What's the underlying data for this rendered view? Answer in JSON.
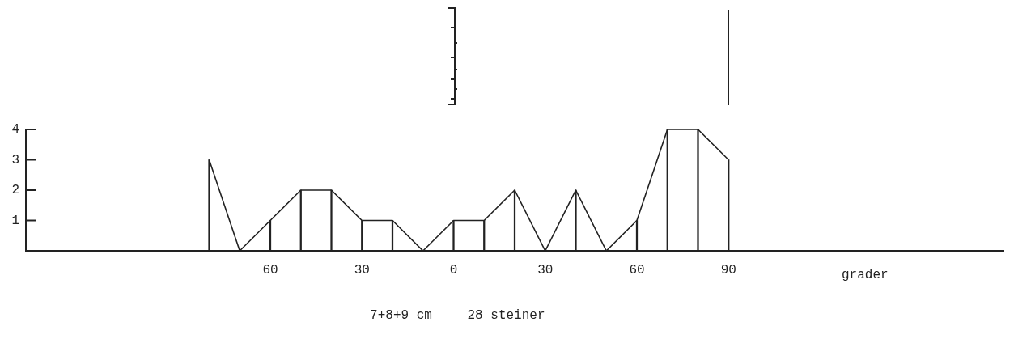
{
  "chart_data": {
    "type": "line",
    "xlabel": "grader",
    "x": [
      -80,
      -70,
      -60,
      -50,
      -40,
      -30,
      -20,
      -10,
      0,
      10,
      20,
      30,
      40,
      50,
      60,
      70,
      80,
      90
    ],
    "series": [
      {
        "color": "#222222",
        "values": [
          3,
          0,
          1,
          2,
          2,
          1,
          1,
          0,
          1,
          1,
          2,
          0,
          2,
          0,
          1,
          4,
          4,
          3
        ]
      },
      {
        "type": "bar",
        "color": "#222222",
        "values": [
          3,
          0,
          1,
          2,
          2,
          1,
          1,
          0,
          1,
          1,
          2,
          0,
          2,
          0,
          1,
          4,
          4,
          3
        ]
      }
    ],
    "xlim": [
      -140,
      180
    ],
    "ylim": [
      0,
      4
    ],
    "xticks": [
      {
        "value": -60,
        "label": "60"
      },
      {
        "value": -30,
        "label": "30"
      },
      0,
      30,
      60,
      90
    ],
    "yticks": [
      1,
      2,
      3,
      4
    ],
    "grid": false,
    "marker": "none",
    "line_style": "solid",
    "annotations": [
      "7+8+9 cm",
      "28 steiner"
    ]
  }
}
